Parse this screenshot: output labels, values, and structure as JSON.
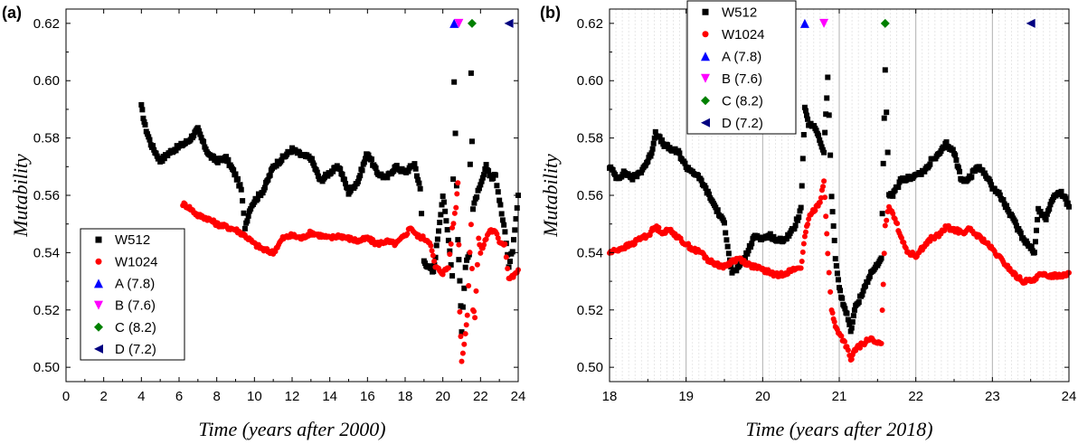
{
  "chart_data": [
    {
      "panel_label": "(a)",
      "type": "scatter",
      "xlabel": "Time (years after 2000)",
      "ylabel": "Mutability",
      "xlim": [
        0,
        24
      ],
      "ylim": [
        0.495,
        0.625
      ],
      "x_ticks": [
        "0",
        "2",
        "4",
        "6",
        "8",
        "10",
        "12",
        "14",
        "16",
        "18",
        "20",
        "22",
        "24"
      ],
      "y_ticks": [
        "0.50",
        "0.52",
        "0.54",
        "0.56",
        "0.58",
        "0.60",
        "0.62"
      ],
      "grid": false,
      "legend_position": "bottom-left",
      "series": [
        {
          "name": "W512",
          "marker": "square",
          "color": "#000000",
          "x": [
            4.0,
            4.2,
            4.5,
            5.0,
            5.5,
            6.0,
            6.5,
            7.0,
            7.3,
            7.6,
            8.0,
            8.5,
            9.0,
            9.3,
            9.5,
            9.8,
            10.0,
            10.5,
            11.0,
            11.5,
            12.0,
            12.5,
            13.0,
            13.5,
            14.0,
            14.5,
            15.0,
            15.5,
            16.0,
            16.5,
            17.0,
            17.5,
            18.0,
            18.5,
            18.8,
            19.0,
            19.5,
            20.0,
            20.3,
            20.5,
            20.6,
            20.8,
            20.9,
            21.0,
            21.2,
            21.4,
            21.5,
            21.6,
            21.8,
            22.0,
            22.3,
            22.6,
            22.8,
            23.0,
            23.3,
            23.5,
            23.7,
            24.0
          ],
          "y": [
            0.591,
            0.584,
            0.578,
            0.572,
            0.575,
            0.577,
            0.579,
            0.583,
            0.578,
            0.574,
            0.572,
            0.573,
            0.567,
            0.562,
            0.549,
            0.556,
            0.558,
            0.562,
            0.57,
            0.573,
            0.576,
            0.574,
            0.573,
            0.565,
            0.568,
            0.57,
            0.561,
            0.565,
            0.575,
            0.568,
            0.566,
            0.57,
            0.568,
            0.571,
            0.562,
            0.537,
            0.533,
            0.56,
            0.545,
            0.532,
            0.6,
            0.545,
            0.53,
            0.513,
            0.535,
            0.54,
            0.603,
            0.555,
            0.56,
            0.563,
            0.57,
            0.566,
            0.567,
            0.558,
            0.548,
            0.535,
            0.541,
            0.56
          ]
        },
        {
          "name": "W1024",
          "marker": "circle",
          "color": "#ff0000",
          "x": [
            6.2,
            6.5,
            7.0,
            7.5,
            8.0,
            8.5,
            9.0,
            9.5,
            10.0,
            10.5,
            11.0,
            11.5,
            12.0,
            12.5,
            13.0,
            13.5,
            14.0,
            14.5,
            15.0,
            15.5,
            16.0,
            16.5,
            17.0,
            17.5,
            18.0,
            18.3,
            18.6,
            19.0,
            19.3,
            19.6,
            20.0,
            20.3,
            20.5,
            20.7,
            20.8,
            20.9,
            21.0,
            21.2,
            21.3,
            21.5,
            21.6,
            21.7,
            21.9,
            22.0,
            22.3,
            22.5,
            22.8,
            23.0,
            23.3,
            23.5,
            23.8,
            24.0
          ],
          "y": [
            0.557,
            0.556,
            0.553,
            0.552,
            0.55,
            0.549,
            0.548,
            0.546,
            0.543,
            0.541,
            0.54,
            0.545,
            0.546,
            0.545,
            0.547,
            0.546,
            0.545,
            0.546,
            0.545,
            0.544,
            0.545,
            0.543,
            0.544,
            0.543,
            0.546,
            0.549,
            0.546,
            0.545,
            0.544,
            0.535,
            0.533,
            0.535,
            0.548,
            0.556,
            0.565,
            0.52,
            0.502,
            0.512,
            0.518,
            0.55,
            0.52,
            0.518,
            0.545,
            0.54,
            0.545,
            0.548,
            0.547,
            0.544,
            0.543,
            0.531,
            0.532,
            0.534
          ]
        },
        {
          "name": "A (7.8)",
          "marker": "triangle-up",
          "color": "#0000ff",
          "x": [
            20.6
          ],
          "y": [
            0.62
          ]
        },
        {
          "name": "B (7.6)",
          "marker": "triangle-down",
          "color": "#ff00ff",
          "x": [
            20.85
          ],
          "y": [
            0.62
          ]
        },
        {
          "name": "C (8.2)",
          "marker": "diamond",
          "color": "#008000",
          "x": [
            21.55
          ],
          "y": [
            0.62
          ]
        },
        {
          "name": "D (7.2)",
          "marker": "triangle-left",
          "color": "#000080",
          "x": [
            23.5
          ],
          "y": [
            0.62
          ]
        }
      ]
    },
    {
      "panel_label": "(b)",
      "type": "scatter",
      "xlabel": "Time (years after 2018)",
      "ylabel": "Mutability",
      "xlim": [
        18,
        24
      ],
      "ylim": [
        0.495,
        0.625
      ],
      "x_ticks": [
        "18",
        "19",
        "20",
        "21",
        "22",
        "23",
        "24"
      ],
      "y_ticks": [
        "0.50",
        "0.52",
        "0.54",
        "0.56",
        "0.58",
        "0.60",
        "0.62"
      ],
      "grid": true,
      "legend_position": "top-left",
      "series": [
        {
          "name": "W512",
          "marker": "square",
          "color": "#000000",
          "x": [
            18.0,
            18.1,
            18.2,
            18.3,
            18.4,
            18.5,
            18.55,
            18.6,
            18.7,
            18.8,
            18.9,
            19.0,
            19.1,
            19.2,
            19.3,
            19.4,
            19.5,
            19.6,
            19.7,
            19.8,
            19.9,
            20.0,
            20.1,
            20.2,
            20.3,
            20.4,
            20.5,
            20.55,
            20.6,
            20.7,
            20.8,
            20.85,
            20.9,
            20.95,
            21.0,
            21.05,
            21.1,
            21.15,
            21.2,
            21.3,
            21.4,
            21.5,
            21.55,
            21.6,
            21.65,
            21.7,
            21.8,
            21.9,
            22.0,
            22.1,
            22.2,
            22.3,
            22.4,
            22.5,
            22.6,
            22.7,
            22.8,
            22.9,
            23.0,
            23.1,
            23.2,
            23.3,
            23.4,
            23.5,
            23.55,
            23.6,
            23.7,
            23.8,
            23.9,
            24.0
          ],
          "y": [
            0.57,
            0.566,
            0.568,
            0.566,
            0.568,
            0.572,
            0.575,
            0.582,
            0.578,
            0.576,
            0.575,
            0.57,
            0.568,
            0.565,
            0.56,
            0.555,
            0.55,
            0.533,
            0.535,
            0.54,
            0.546,
            0.545,
            0.546,
            0.544,
            0.545,
            0.548,
            0.555,
            0.59,
            0.585,
            0.583,
            0.575,
            0.601,
            0.56,
            0.538,
            0.528,
            0.522,
            0.519,
            0.512,
            0.52,
            0.526,
            0.532,
            0.536,
            0.538,
            0.603,
            0.56,
            0.56,
            0.565,
            0.566,
            0.567,
            0.568,
            0.572,
            0.574,
            0.578,
            0.575,
            0.565,
            0.566,
            0.57,
            0.568,
            0.563,
            0.56,
            0.555,
            0.55,
            0.545,
            0.542,
            0.54,
            0.555,
            0.552,
            0.56,
            0.561,
            0.556
          ]
        },
        {
          "name": "W1024",
          "marker": "circle",
          "color": "#ff0000",
          "x": [
            18.0,
            18.1,
            18.2,
            18.3,
            18.4,
            18.5,
            18.6,
            18.7,
            18.8,
            18.9,
            19.0,
            19.1,
            19.2,
            19.3,
            19.4,
            19.5,
            19.6,
            19.7,
            19.8,
            19.9,
            20.0,
            20.1,
            20.2,
            20.3,
            20.4,
            20.5,
            20.55,
            20.6,
            20.7,
            20.75,
            20.8,
            20.85,
            20.9,
            20.95,
            21.0,
            21.1,
            21.15,
            21.2,
            21.3,
            21.4,
            21.5,
            21.55,
            21.6,
            21.65,
            21.7,
            21.8,
            21.9,
            22.0,
            22.1,
            22.2,
            22.3,
            22.4,
            22.5,
            22.6,
            22.7,
            22.8,
            22.9,
            23.0,
            23.1,
            23.2,
            23.3,
            23.4,
            23.5,
            23.6,
            23.7,
            23.8,
            23.9,
            24.0
          ],
          "y": [
            0.54,
            0.541,
            0.542,
            0.543,
            0.545,
            0.546,
            0.549,
            0.547,
            0.548,
            0.545,
            0.543,
            0.541,
            0.54,
            0.537,
            0.536,
            0.535,
            0.537,
            0.538,
            0.536,
            0.535,
            0.534,
            0.533,
            0.532,
            0.533,
            0.534,
            0.535,
            0.545,
            0.552,
            0.556,
            0.558,
            0.565,
            0.54,
            0.52,
            0.514,
            0.512,
            0.507,
            0.502,
            0.506,
            0.508,
            0.51,
            0.508,
            0.509,
            0.55,
            0.556,
            0.554,
            0.546,
            0.54,
            0.539,
            0.542,
            0.545,
            0.546,
            0.549,
            0.548,
            0.547,
            0.548,
            0.546,
            0.544,
            0.541,
            0.538,
            0.535,
            0.532,
            0.53,
            0.53,
            0.532,
            0.532,
            0.532,
            0.532,
            0.533
          ]
        },
        {
          "name": "A (7.8)",
          "marker": "triangle-up",
          "color": "#0000ff",
          "x": [
            20.55
          ],
          "y": [
            0.62
          ]
        },
        {
          "name": "B (7.6)",
          "marker": "triangle-down",
          "color": "#ff00ff",
          "x": [
            20.8
          ],
          "y": [
            0.62
          ]
        },
        {
          "name": "C (8.2)",
          "marker": "diamond",
          "color": "#008000",
          "x": [
            21.6
          ],
          "y": [
            0.62
          ]
        },
        {
          "name": "D (7.2)",
          "marker": "triangle-left",
          "color": "#000080",
          "x": [
            23.5
          ],
          "y": [
            0.62
          ]
        }
      ]
    }
  ]
}
